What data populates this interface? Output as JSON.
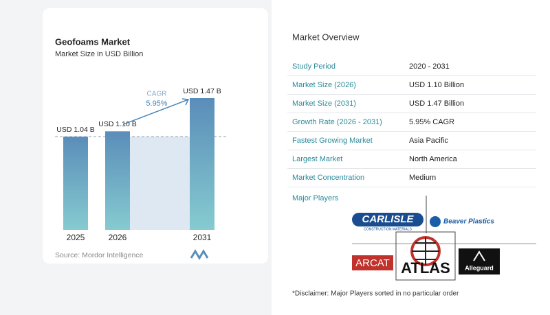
{
  "chart_data": {
    "type": "bar",
    "title": "Geofoams Market",
    "subtitle": "Market Size in USD Billion",
    "categories": [
      "2025",
      "2026",
      "2031"
    ],
    "values": [
      1.04,
      1.1,
      1.47
    ],
    "value_labels": [
      "USD 1.04 B",
      "USD 1.10 B",
      "USD 1.47 B"
    ],
    "annotations": [
      "CAGR",
      "5.95%"
    ],
    "source": "Source: Mordor Intelligence"
  },
  "overview": {
    "title": "Market Overview",
    "rows": [
      [
        "Study Period",
        "2020 - 2031"
      ],
      [
        "Market Size (2026)",
        "USD 1.10 Billion"
      ],
      [
        "Market Size (2031)",
        "USD 1.47 Billion"
      ],
      [
        "Growth Rate (2026 - 2031)",
        "5.95% CAGR"
      ],
      [
        "Fastest Growing Market",
        "Asia Pacific"
      ],
      [
        "Largest Market",
        "North America"
      ],
      [
        "Market Concentration",
        "Medium"
      ]
    ]
  },
  "major_players": {
    "title": "Major Players",
    "logos": [
      "CARLISLE",
      "CONSTRUCTION MATERIALS",
      "Beaver Plastics",
      "ARCAT",
      "ATLAS",
      "Alleguard"
    ],
    "disclaimer": "*Disclaimer: Major Players sorted in no particular order"
  }
}
